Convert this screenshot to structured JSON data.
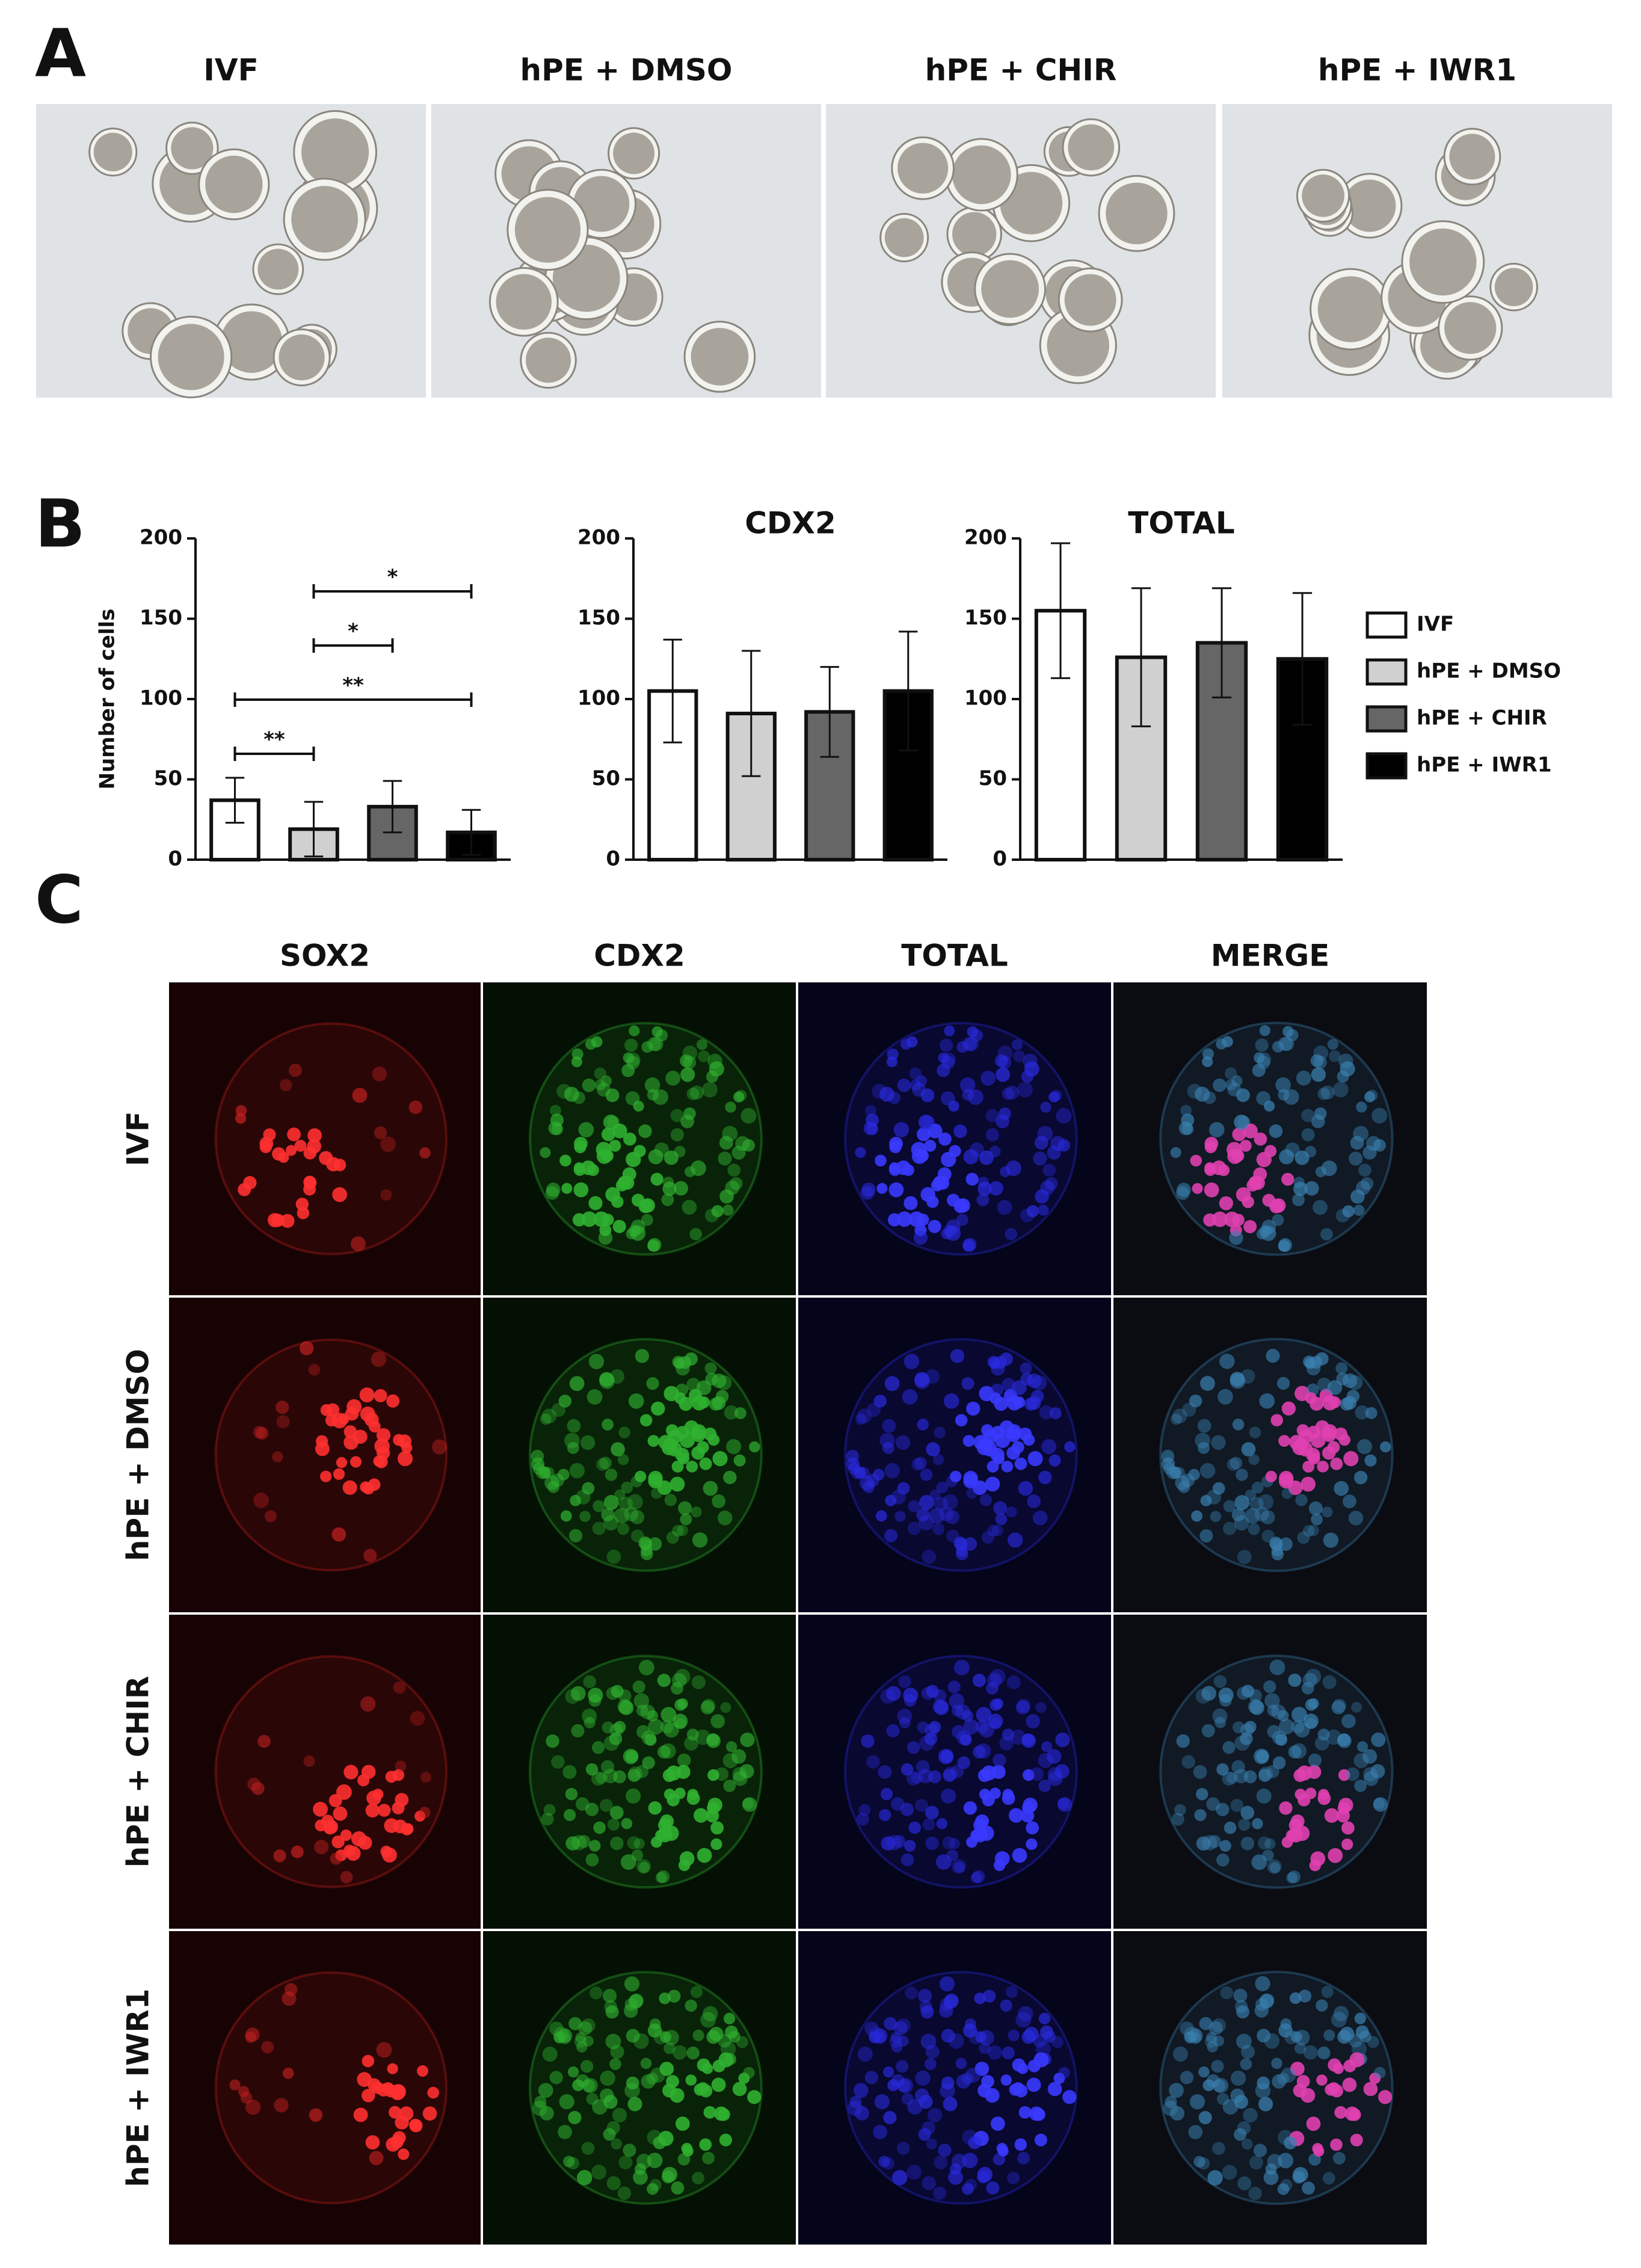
{
  "panel_labels": {
    "a": "A",
    "b": "B",
    "c": "C"
  },
  "panel_a": {
    "titles": [
      "IVF",
      "hPE + DMSO",
      "hPE + CHIR",
      "hPE + IWR1"
    ]
  },
  "legend": [
    {
      "name": "IVF",
      "color": "#ffffff"
    },
    {
      "name": "hPE + DMSO",
      "color": "#d0d0d0"
    },
    {
      "name": "hPE + CHIR",
      "color": "#666666"
    },
    {
      "name": "hPE + IWR1",
      "color": "#000000"
    }
  ],
  "chart_data": [
    {
      "type": "bar",
      "ylabel": "Number of cells",
      "values": [
        37,
        19,
        33,
        17
      ],
      "errors": [
        14,
        17,
        16,
        14
      ],
      "ylim": [
        0,
        200
      ],
      "yticks": [
        0,
        50,
        100,
        150,
        200
      ],
      "significance": [
        {
          "from": 0,
          "to": 1,
          "label": "**"
        },
        {
          "from": 0,
          "to": 3,
          "label": "**"
        },
        {
          "from": 1,
          "to": 2,
          "label": "*"
        },
        {
          "from": 1,
          "to": 3,
          "label": "*"
        }
      ]
    },
    {
      "type": "bar",
      "title": "CDX2",
      "values": [
        105,
        91,
        92,
        105
      ],
      "errors": [
        32,
        39,
        28,
        37
      ],
      "ylim": [
        0,
        200
      ],
      "yticks": [
        0,
        50,
        100,
        150,
        200
      ]
    },
    {
      "type": "bar",
      "title": "TOTAL",
      "values": [
        155,
        126,
        135,
        125
      ],
      "errors": [
        42,
        43,
        34,
        41
      ],
      "ylim": [
        0,
        200
      ],
      "yticks": [
        0,
        50,
        100,
        150,
        200
      ]
    }
  ],
  "panel_c": {
    "columns": [
      "SOX2",
      "CDX2",
      "TOTAL",
      "MERGE"
    ],
    "rows": [
      "IVF",
      "hPE + DMSO",
      "hPE + CHIR",
      "hPE + IWR1"
    ]
  }
}
